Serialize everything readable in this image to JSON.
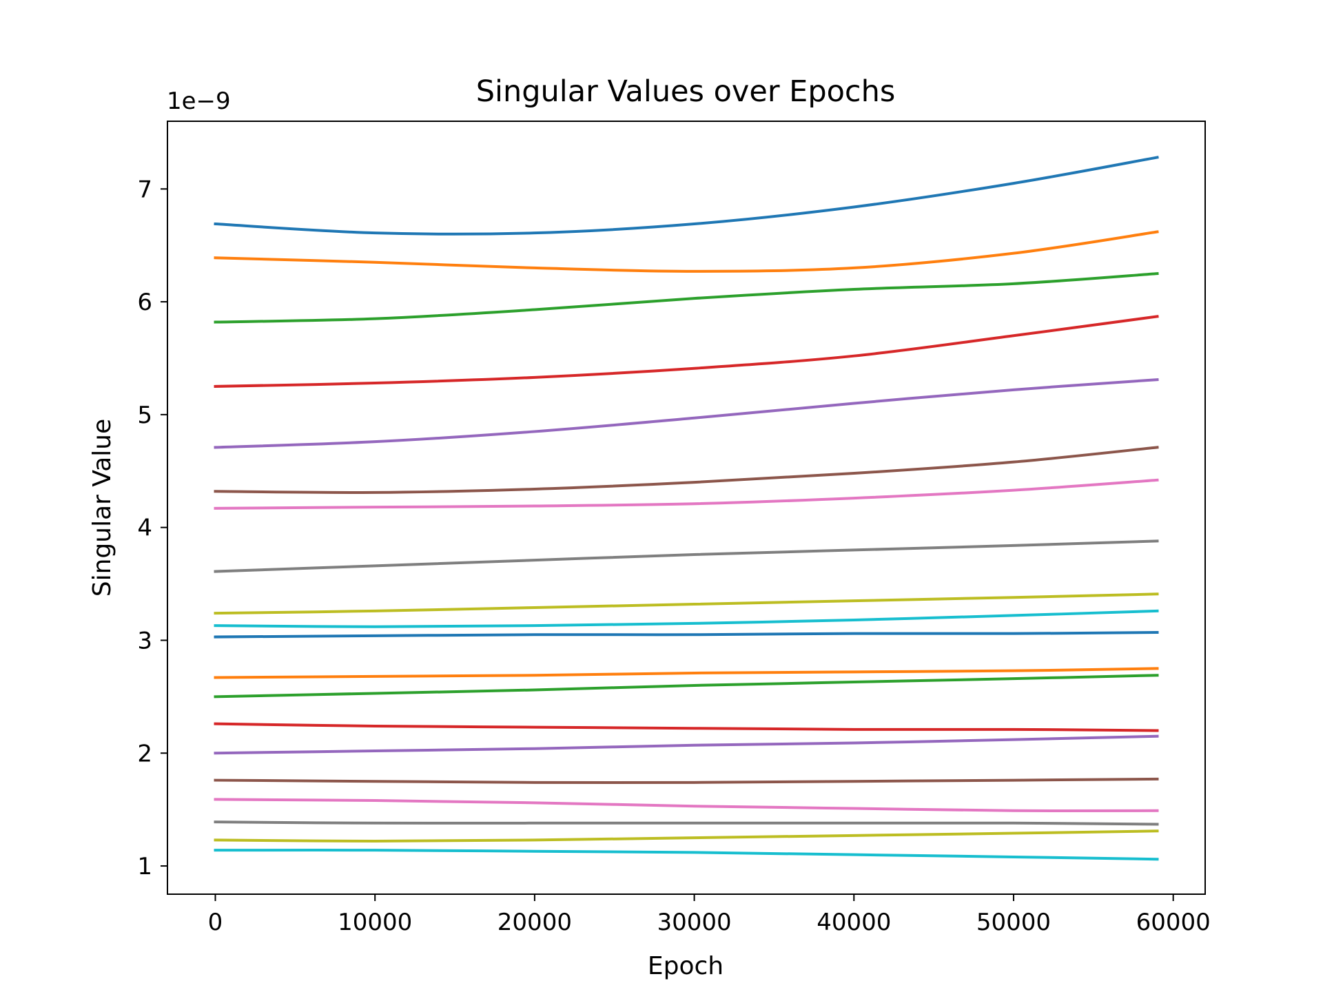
{
  "chart_data": {
    "type": "line",
    "title": "Singular Values over Epochs",
    "xlabel": "Epoch",
    "ylabel": "Singular Value",
    "y_offset_label": "1e−9",
    "xlim": [
      -3000,
      62000
    ],
    "ylim": [
      0.75,
      7.6
    ],
    "xticks": [
      0,
      10000,
      20000,
      30000,
      40000,
      50000,
      60000
    ],
    "xtick_labels": [
      "0",
      "10000",
      "20000",
      "30000",
      "40000",
      "50000",
      "60000"
    ],
    "yticks": [
      1,
      2,
      3,
      4,
      5,
      6,
      7
    ],
    "ytick_labels": [
      "1",
      "2",
      "3",
      "4",
      "5",
      "6",
      "7"
    ],
    "grid": false,
    "legend": "none",
    "x": [
      0,
      10000,
      20000,
      30000,
      40000,
      50000,
      59000
    ],
    "series": [
      {
        "color": "#1f77b4",
        "values": [
          6.69,
          6.61,
          6.61,
          6.69,
          6.84,
          7.05,
          7.28
        ]
      },
      {
        "color": "#ff7f0e",
        "values": [
          6.39,
          6.35,
          6.3,
          6.27,
          6.3,
          6.43,
          6.62
        ]
      },
      {
        "color": "#2ca02c",
        "values": [
          5.82,
          5.85,
          5.93,
          6.03,
          6.11,
          6.16,
          6.25
        ]
      },
      {
        "color": "#d62728",
        "values": [
          5.25,
          5.28,
          5.33,
          5.41,
          5.52,
          5.7,
          5.87
        ]
      },
      {
        "color": "#9467bd",
        "values": [
          4.71,
          4.76,
          4.85,
          4.97,
          5.1,
          5.22,
          5.31
        ]
      },
      {
        "color": "#8c564b",
        "values": [
          4.32,
          4.31,
          4.34,
          4.4,
          4.48,
          4.58,
          4.71
        ]
      },
      {
        "color": "#e377c2",
        "values": [
          4.17,
          4.18,
          4.19,
          4.21,
          4.26,
          4.33,
          4.42
        ]
      },
      {
        "color": "#7f7f7f",
        "values": [
          3.61,
          3.66,
          3.71,
          3.76,
          3.8,
          3.84,
          3.88
        ]
      },
      {
        "color": "#bcbd22",
        "values": [
          3.24,
          3.26,
          3.29,
          3.32,
          3.35,
          3.38,
          3.41
        ]
      },
      {
        "color": "#17becf",
        "values": [
          3.13,
          3.12,
          3.13,
          3.15,
          3.18,
          3.22,
          3.26
        ]
      },
      {
        "color": "#1f77b4",
        "values": [
          3.03,
          3.04,
          3.05,
          3.05,
          3.06,
          3.06,
          3.07
        ]
      },
      {
        "color": "#ff7f0e",
        "values": [
          2.67,
          2.68,
          2.69,
          2.71,
          2.72,
          2.73,
          2.75
        ]
      },
      {
        "color": "#2ca02c",
        "values": [
          2.5,
          2.53,
          2.56,
          2.6,
          2.63,
          2.66,
          2.69
        ]
      },
      {
        "color": "#d62728",
        "values": [
          2.26,
          2.24,
          2.23,
          2.22,
          2.21,
          2.21,
          2.2
        ]
      },
      {
        "color": "#9467bd",
        "values": [
          2.0,
          2.02,
          2.04,
          2.07,
          2.09,
          2.12,
          2.15
        ]
      },
      {
        "color": "#8c564b",
        "values": [
          1.76,
          1.75,
          1.74,
          1.74,
          1.75,
          1.76,
          1.77
        ]
      },
      {
        "color": "#e377c2",
        "values": [
          1.59,
          1.58,
          1.56,
          1.53,
          1.51,
          1.49,
          1.49
        ]
      },
      {
        "color": "#7f7f7f",
        "values": [
          1.39,
          1.38,
          1.38,
          1.38,
          1.38,
          1.38,
          1.37
        ]
      },
      {
        "color": "#bcbd22",
        "values": [
          1.23,
          1.22,
          1.23,
          1.25,
          1.27,
          1.29,
          1.31
        ]
      },
      {
        "color": "#17becf",
        "values": [
          1.14,
          1.14,
          1.13,
          1.12,
          1.1,
          1.08,
          1.06
        ]
      }
    ]
  }
}
